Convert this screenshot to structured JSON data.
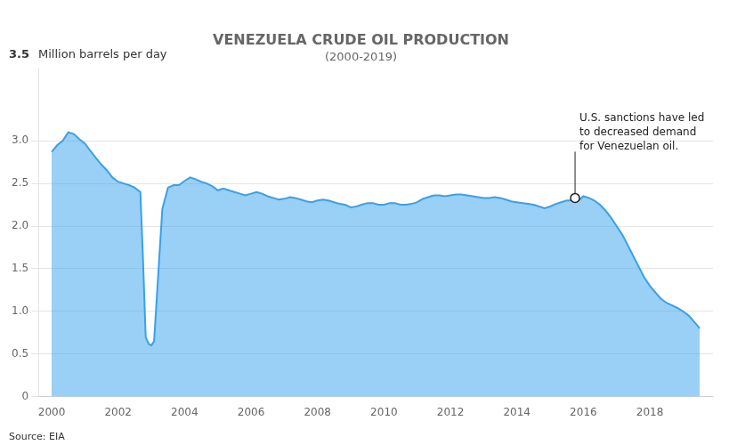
{
  "chart_data": {
    "type": "area",
    "title": "VENEZUELA CRUDE OIL PRODUCTION",
    "subtitle": "(2000-2019)",
    "ylabel": [
      "3.5",
      "Million barrels per day"
    ],
    "source": "Source: EIA",
    "annotation": {
      "text": "U.S. sanctions have led\nto decreased demand\nfor Venezuelan oil.",
      "x": 2015.75,
      "y": 2.33
    },
    "x": [
      2000.0,
      2000.17,
      2000.33,
      2000.5,
      2000.67,
      2000.83,
      2001.0,
      2001.17,
      2001.33,
      2001.5,
      2001.67,
      2001.83,
      2002.0,
      2002.17,
      2002.33,
      2002.5,
      2002.67,
      2002.75,
      2002.83,
      2002.917,
      2003.0,
      2003.083,
      2003.17,
      2003.33,
      2003.5,
      2003.67,
      2003.83,
      2004.0,
      2004.17,
      2004.33,
      2004.5,
      2004.67,
      2004.83,
      2005.0,
      2005.17,
      2005.33,
      2005.5,
      2005.67,
      2005.83,
      2006.0,
      2006.17,
      2006.33,
      2006.5,
      2006.67,
      2006.83,
      2007.0,
      2007.17,
      2007.33,
      2007.5,
      2007.67,
      2007.83,
      2008.0,
      2008.17,
      2008.33,
      2008.5,
      2008.67,
      2008.83,
      2009.0,
      2009.17,
      2009.33,
      2009.5,
      2009.67,
      2009.83,
      2010.0,
      2010.17,
      2010.33,
      2010.5,
      2010.67,
      2010.83,
      2011.0,
      2011.17,
      2011.33,
      2011.5,
      2011.67,
      2011.83,
      2012.0,
      2012.17,
      2012.33,
      2012.5,
      2012.67,
      2012.83,
      2013.0,
      2013.17,
      2013.33,
      2013.5,
      2013.67,
      2013.83,
      2014.0,
      2014.17,
      2014.33,
      2014.5,
      2014.67,
      2014.83,
      2015.0,
      2015.17,
      2015.33,
      2015.5,
      2015.67,
      2015.83,
      2016.0,
      2016.17,
      2016.33,
      2016.5,
      2016.67,
      2016.83,
      2017.0,
      2017.17,
      2017.33,
      2017.5,
      2017.67,
      2017.83,
      2018.0,
      2018.17,
      2018.33,
      2018.5,
      2018.67,
      2018.83,
      2019.0,
      2019.17,
      2019.33,
      2019.5
    ],
    "values": [
      2.87,
      2.95,
      3.0,
      3.1,
      3.08,
      3.02,
      2.97,
      2.88,
      2.8,
      2.72,
      2.65,
      2.57,
      2.52,
      2.5,
      2.48,
      2.45,
      2.4,
      1.6,
      0.7,
      0.62,
      0.6,
      0.65,
      1.2,
      2.2,
      2.45,
      2.48,
      2.48,
      2.53,
      2.57,
      2.55,
      2.52,
      2.5,
      2.47,
      2.42,
      2.44,
      2.42,
      2.4,
      2.38,
      2.36,
      2.38,
      2.4,
      2.38,
      2.35,
      2.33,
      2.31,
      2.32,
      2.34,
      2.33,
      2.31,
      2.29,
      2.28,
      2.3,
      2.31,
      2.3,
      2.28,
      2.26,
      2.25,
      2.22,
      2.23,
      2.25,
      2.27,
      2.27,
      2.25,
      2.25,
      2.27,
      2.27,
      2.25,
      2.25,
      2.26,
      2.28,
      2.32,
      2.34,
      2.36,
      2.36,
      2.35,
      2.36,
      2.37,
      2.37,
      2.36,
      2.35,
      2.34,
      2.33,
      2.33,
      2.34,
      2.33,
      2.31,
      2.29,
      2.28,
      2.27,
      2.26,
      2.25,
      2.23,
      2.21,
      2.23,
      2.26,
      2.28,
      2.3,
      2.3,
      2.29,
      2.35,
      2.33,
      2.3,
      2.25,
      2.18,
      2.1,
      2.0,
      1.9,
      1.78,
      1.65,
      1.52,
      1.4,
      1.3,
      1.22,
      1.15,
      1.1,
      1.07,
      1.04,
      1.0,
      0.95,
      0.88,
      0.8
    ],
    "xlim": [
      1999.6,
      2019.9
    ],
    "xticks": [
      2000,
      2002,
      2004,
      2006,
      2008,
      2010,
      2012,
      2014,
      2016,
      2018
    ],
    "ylim": [
      0,
      3.85
    ],
    "yticks": [
      0,
      0.5,
      {
        "value": 1.0,
        "label": "1.0"
      },
      1.5,
      {
        "value": 2.0,
        "label": "2.0"
      },
      2.5,
      {
        "value": 3.0,
        "label": "3.0"
      }
    ],
    "grid": true
  }
}
